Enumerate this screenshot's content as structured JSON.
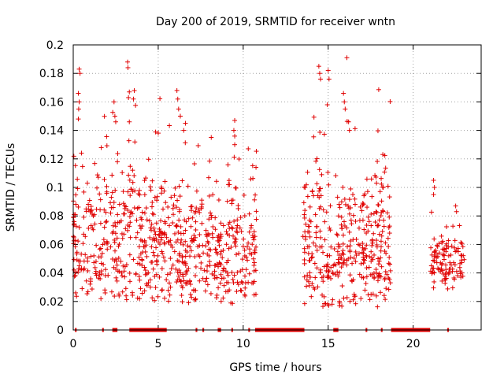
{
  "chart_data": {
    "type": "scatter",
    "title": "Day 200 of 2019, SRMTID for receiver wntn",
    "xlabel": "GPS time / hours",
    "ylabel": "SRMTID / TECUs",
    "xlim": [
      0,
      24
    ],
    "ylim": [
      0,
      0.2
    ],
    "x_ticks": [
      0,
      5,
      10,
      15,
      20
    ],
    "x_tick_labels": [
      "0",
      "5",
      "10",
      "15",
      "20"
    ],
    "y_ticks": [
      0,
      0.02,
      0.04,
      0.06,
      0.08,
      0.1,
      0.12,
      0.14,
      0.16,
      0.18,
      0.2
    ],
    "y_tick_labels": [
      "0",
      "0.02",
      "0.04",
      "0.06",
      "0.08",
      "0.1",
      "0.12",
      "0.14",
      "0.16",
      "0.18",
      "0.2"
    ],
    "grid": true,
    "marker": "+",
    "color": "#e00000",
    "clusters": [
      {
        "x_start": 0.0,
        "x_end": 5.5,
        "y_min": 0.02,
        "y_max": 0.19,
        "y_mid": 0.065,
        "count": 380
      },
      {
        "x_start": 5.5,
        "x_end": 10.8,
        "y_min": 0.018,
        "y_max": 0.17,
        "y_mid": 0.055,
        "count": 360
      },
      {
        "x_start": 13.5,
        "x_end": 18.7,
        "y_min": 0.016,
        "y_max": 0.19,
        "y_mid": 0.06,
        "count": 380
      },
      {
        "x_start": 21.0,
        "x_end": 23.0,
        "y_min": 0.028,
        "y_max": 0.107,
        "y_mid": 0.048,
        "count": 110
      }
    ],
    "spikes": [
      {
        "x": 0.35,
        "y": 0.183
      },
      {
        "x": 0.4,
        "y": 0.18
      },
      {
        "x": 0.3,
        "y": 0.166
      },
      {
        "x": 0.35,
        "y": 0.16
      },
      {
        "x": 0.32,
        "y": 0.155
      },
      {
        "x": 0.3,
        "y": 0.148
      },
      {
        "x": 2.4,
        "y": 0.16
      },
      {
        "x": 2.45,
        "y": 0.15
      },
      {
        "x": 2.5,
        "y": 0.146
      },
      {
        "x": 3.2,
        "y": 0.188
      },
      {
        "x": 3.22,
        "y": 0.184
      },
      {
        "x": 3.3,
        "y": 0.167
      },
      {
        "x": 3.25,
        "y": 0.163
      },
      {
        "x": 3.3,
        "y": 0.146
      },
      {
        "x": 3.9,
        "y": 0.022
      },
      {
        "x": 6.1,
        "y": 0.168
      },
      {
        "x": 6.15,
        "y": 0.162
      },
      {
        "x": 6.2,
        "y": 0.155
      },
      {
        "x": 6.3,
        "y": 0.15
      },
      {
        "x": 6.6,
        "y": 0.145
      },
      {
        "x": 6.5,
        "y": 0.14
      },
      {
        "x": 9.5,
        "y": 0.147
      },
      {
        "x": 9.45,
        "y": 0.14
      },
      {
        "x": 9.5,
        "y": 0.136
      },
      {
        "x": 9.5,
        "y": 0.13
      },
      {
        "x": 14.45,
        "y": 0.185
      },
      {
        "x": 14.5,
        "y": 0.18
      },
      {
        "x": 14.55,
        "y": 0.176
      },
      {
        "x": 15.0,
        "y": 0.182
      },
      {
        "x": 15.05,
        "y": 0.176
      },
      {
        "x": 14.95,
        "y": 0.158
      },
      {
        "x": 16.1,
        "y": 0.191
      },
      {
        "x": 15.9,
        "y": 0.166
      },
      {
        "x": 15.95,
        "y": 0.16
      },
      {
        "x": 16.0,
        "y": 0.155
      },
      {
        "x": 16.2,
        "y": 0.146
      },
      {
        "x": 16.25,
        "y": 0.14
      },
      {
        "x": 21.2,
        "y": 0.105
      },
      {
        "x": 21.25,
        "y": 0.1
      },
      {
        "x": 21.2,
        "y": 0.095
      },
      {
        "x": 22.5,
        "y": 0.087
      },
      {
        "x": 22.55,
        "y": 0.083
      }
    ],
    "zero_ranges": [
      [
        0.1,
        0.2
      ],
      [
        1.7,
        1.8
      ],
      [
        2.3,
        2.6
      ],
      [
        3.3,
        5.5
      ],
      [
        7.2,
        7.3
      ],
      [
        7.6,
        7.7
      ],
      [
        8.5,
        8.7
      ],
      [
        9.3,
        9.4
      ],
      [
        10.3,
        10.4
      ],
      [
        10.7,
        13.6
      ],
      [
        15.3,
        15.6
      ],
      [
        17.2,
        17.3
      ],
      [
        18.1,
        18.2
      ],
      [
        18.7,
        21.0
      ],
      [
        22.0,
        22.1
      ]
    ]
  }
}
